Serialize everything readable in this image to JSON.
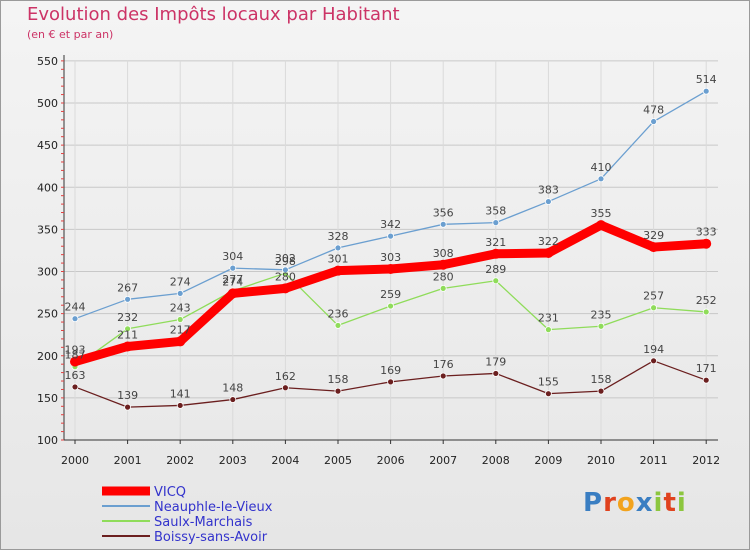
{
  "chart_data": {
    "type": "line",
    "title": "Evolution des Impôts locaux par Habitant",
    "subtitle": "(en € et par an)",
    "xlabel": "",
    "ylabel": "",
    "ylim": [
      100,
      550
    ],
    "yticks": [
      100,
      150,
      200,
      250,
      300,
      350,
      400,
      450,
      500,
      550
    ],
    "categories": [
      "2000",
      "2001",
      "2002",
      "2003",
      "2004",
      "2005",
      "2006",
      "2007",
      "2008",
      "2009",
      "2010",
      "2011",
      "2012"
    ],
    "series": [
      {
        "name": "VICQ",
        "color": "#ff0000",
        "values": [
          193,
          211,
          217,
          274,
          280,
          301,
          303,
          308,
          321,
          322,
          355,
          329,
          333
        ]
      },
      {
        "name": "Neauphle-le-Vieux",
        "color": "#6b9fd0",
        "values": [
          244,
          267,
          274,
          304,
          302,
          328,
          342,
          356,
          358,
          383,
          410,
          478,
          514
        ]
      },
      {
        "name": "Saulx-Marchais",
        "color": "#8fdc5a",
        "values": [
          187,
          232,
          243,
          277,
          298,
          236,
          259,
          280,
          289,
          231,
          235,
          257,
          252
        ]
      },
      {
        "name": "Boissy-sans-Avoir",
        "color": "#6b1f1f",
        "values": [
          163,
          139,
          141,
          148,
          162,
          158,
          169,
          176,
          179,
          155,
          158,
          194,
          171
        ]
      }
    ]
  },
  "legend": {
    "items": [
      {
        "label": "VICQ",
        "color": "#ff0000"
      },
      {
        "label": "Neauphle-le-Vieux",
        "color": "#6b9fd0"
      },
      {
        "label": "Saulx-Marchais",
        "color": "#8fdc5a"
      },
      {
        "label": "Boissy-sans-Avoir",
        "color": "#6b1f1f"
      }
    ]
  },
  "logo": {
    "letters": [
      "P",
      "r",
      "o",
      "x",
      "i",
      "t",
      "i"
    ],
    "colors": [
      "#3a7ec2",
      "#e0421e",
      "#f2a31d",
      "#3a7ec2",
      "#8cc63e",
      "#e0421e",
      "#8cc63e"
    ]
  }
}
